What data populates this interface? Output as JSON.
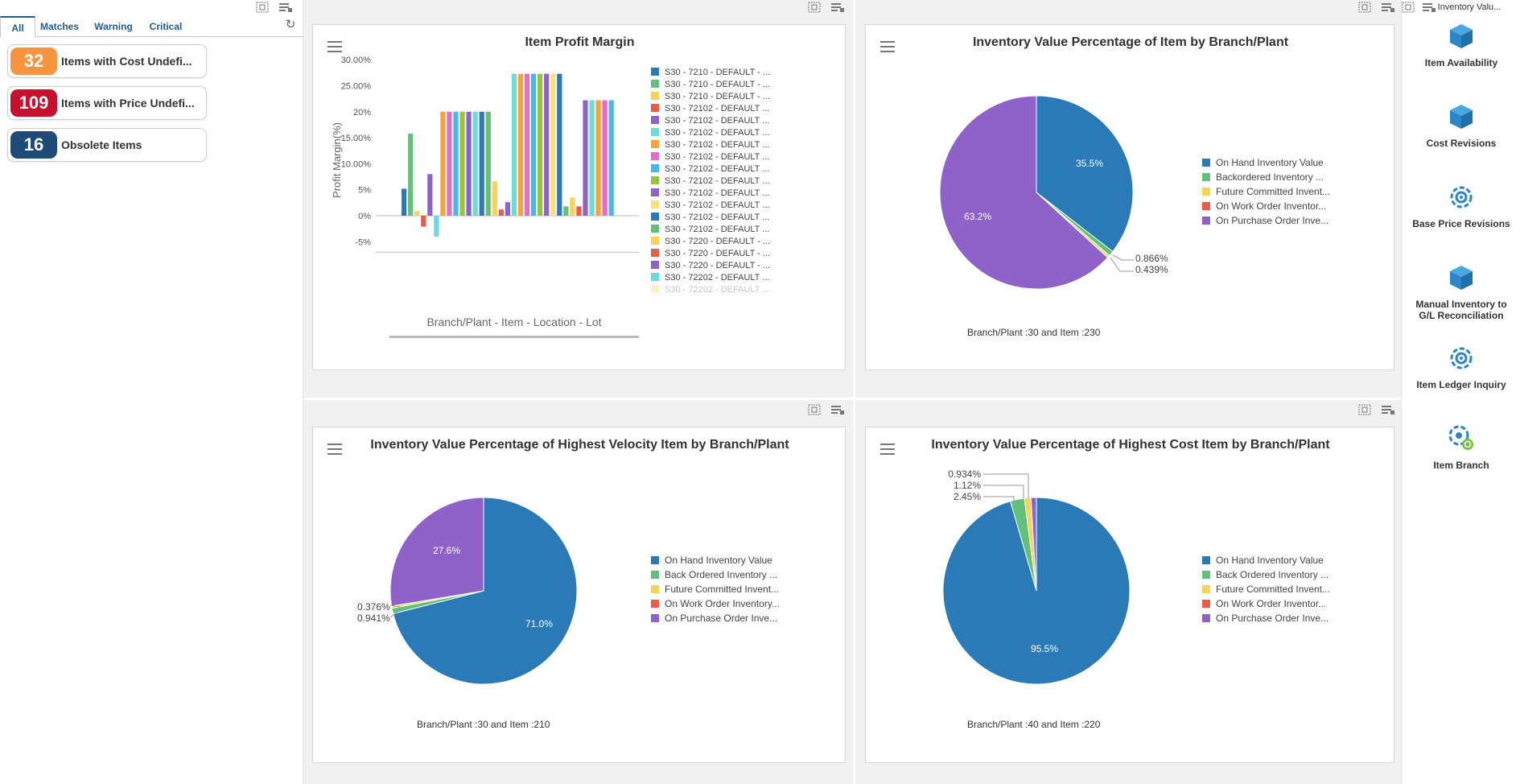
{
  "alerts": {
    "tabs": [
      "All",
      "Matches",
      "Warning",
      "Critical"
    ],
    "items": [
      {
        "count": "32",
        "label": "Items with Cost Undefi...",
        "color": "#f7943e"
      },
      {
        "count": "109",
        "label": "Items with Price Undefi...",
        "color": "#c8102e"
      },
      {
        "count": "16",
        "label": "Obsolete Items",
        "color": "#1e4a78"
      }
    ]
  },
  "panels": {
    "profit": {
      "title": "Item Profit Margin",
      "legend": [
        "S30 - 7210 - DEFAULT - ...",
        "S30 - 7210 - DEFAULT - ...",
        "S30 - 7210 - DEFAULT - ...",
        "S30 - 72102 - DEFAULT ...",
        "S30 - 72102 - DEFAULT ...",
        "S30 - 72102 - DEFAULT ...",
        "S30 - 72102 - DEFAULT ...",
        "S30 - 72102 - DEFAULT ...",
        "S30 - 72102 - DEFAULT ...",
        "S30 - 72102 - DEFAULT ...",
        "S30 - 72102 - DEFAULT ...",
        "S30 - 72102 - DEFAULT ...",
        "S30 - 72102 - DEFAULT ...",
        "S30 - 72102 - DEFAULT ...",
        "S30 - 7220 - DEFAULT - ...",
        "S30 - 7220 - DEFAULT - ...",
        "S30 - 7220 - DEFAULT - ...",
        "S30 - 72202 - DEFAULT ...",
        "S30 - 72202 - DEFAULT ..."
      ]
    },
    "inv_item": {
      "title": "Inventory Value Percentage of Item by Branch/Plant",
      "legend": [
        "On Hand Inventory Value",
        "Backordered Inventory ...",
        "Future Committed Invent...",
        "On Work Order Inventor...",
        "On Purchase Order Inve..."
      ],
      "caption": "Branch/Plant :30 and  Item :230"
    },
    "inv_velocity": {
      "title": "Inventory Value Percentage of Highest Velocity Item by Branch/Plant",
      "legend": [
        "On Hand Inventory Value",
        "Back Ordered Inventory ...",
        "Future Committed Invent...",
        "On Work Order Inventory...",
        "On Purchase Order Inve..."
      ],
      "caption": "Branch/Plant :30 and Item :210"
    },
    "inv_cost": {
      "title": "Inventory Value Percentage of Highest Cost Item by Branch/Plant",
      "legend": [
        "On Hand Inventory Value",
        "Back Ordered Inventory ...",
        "Future Committed Invent...",
        "On Work Order Inventor...",
        "On Purchase Order Inve..."
      ],
      "caption": "Branch/Plant :40 and  Item :220"
    }
  },
  "springboard": {
    "heading": "Inventory Valu...",
    "items": [
      {
        "label": "Item Availability",
        "icon": "cube-icon"
      },
      {
        "label": "Cost Revisions",
        "icon": "cube-icon"
      },
      {
        "label": "Base Price Revisions",
        "icon": "gear-target-icon"
      },
      {
        "label": "Manual Inventory to G/L Reconciliation",
        "icon": "cube-icon"
      },
      {
        "label": "Item Ledger Inquiry",
        "icon": "gear-target-icon"
      },
      {
        "label": "Item Branch",
        "icon": "gear-search-icon"
      }
    ]
  },
  "colors": {
    "blue": "#2a7ab8",
    "green": "#62c07a",
    "yellow": "#f7d358",
    "red": "#ec5b45",
    "purple": "#8e62c9",
    "teal": "#6bdcdc",
    "orange": "#f5a43a",
    "pink": "#e56cc8",
    "skyblue": "#49b6ec",
    "olive": "#97c43a",
    "lightyellow": "#f9e27a"
  },
  "chart_data": [
    {
      "type": "bar",
      "title": "Item Profit Margin",
      "xlabel": "Branch/Plant - Item - Location - Lot",
      "ylabel": "Profit Margin(%)",
      "ylim": [
        -7.5,
        30
      ],
      "yticks": [
        "30.00%",
        "25.00%",
        "20%",
        "15.00%",
        "10.00%",
        "5%",
        "0%",
        "-5%"
      ],
      "values": [
        5.2,
        15.8,
        0.9,
        -2.1,
        8,
        -4,
        20,
        20,
        20,
        20,
        20,
        20,
        20,
        20,
        6.6,
        1.2,
        2.6,
        27.3,
        27.3,
        27.3,
        27.3,
        27.3,
        27.3,
        27.3,
        27.3,
        1.8,
        3.5,
        1.8,
        22.2,
        22.2,
        22.2,
        22.2,
        22.2
      ],
      "bar_colors": [
        "blue",
        "green",
        "yellow",
        "red",
        "purple",
        "teal",
        "orange",
        "pink",
        "skyblue",
        "olive",
        "purple",
        "teal",
        "blue",
        "green",
        "yellow",
        "red",
        "purple",
        "teal",
        "orange",
        "pink",
        "skyblue",
        "olive",
        "purple",
        "lightyellow",
        "blue",
        "green",
        "yellow",
        "red",
        "purple",
        "teal",
        "orange",
        "pink",
        "skyblue"
      ]
    },
    {
      "type": "pie",
      "title": "Inventory Value Percentage of Item by Branch/Plant",
      "labels": [
        "On Hand Inventory Value",
        "Backordered Inventory",
        "Future Committed Inventory",
        "On Work Order Inventory",
        "On Purchase Order Inventory"
      ],
      "values": [
        35.5,
        0.866,
        0.439,
        0,
        63.2
      ],
      "value_labels": [
        "35.5%",
        "0.866%",
        "0.439%",
        "",
        "63.2%"
      ]
    },
    {
      "type": "pie",
      "title": "Inventory Value Percentage of Highest Velocity Item by Branch/Plant",
      "labels": [
        "On Hand Inventory Value",
        "Back Ordered Inventory",
        "Future Committed Inventory",
        "On Work Order Inventory",
        "On Purchase Order Inventory"
      ],
      "values": [
        71.0,
        0.941,
        0.376,
        0,
        27.6
      ],
      "value_labels": [
        "71.0%",
        "0.941%",
        "0.376%",
        "",
        "27.6%"
      ]
    },
    {
      "type": "pie",
      "title": "Inventory Value Percentage of Highest Cost Item by Branch/Plant",
      "labels": [
        "On Hand Inventory Value",
        "Back Ordered Inventory",
        "Future Committed Inventory",
        "On Work Order Inventory",
        "On Purchase Order Inventory"
      ],
      "values": [
        95.5,
        2.45,
        1.12,
        0,
        0.934
      ],
      "value_labels": [
        "95.5%",
        "2.45%",
        "1.12%",
        "",
        "0.934%"
      ]
    }
  ]
}
